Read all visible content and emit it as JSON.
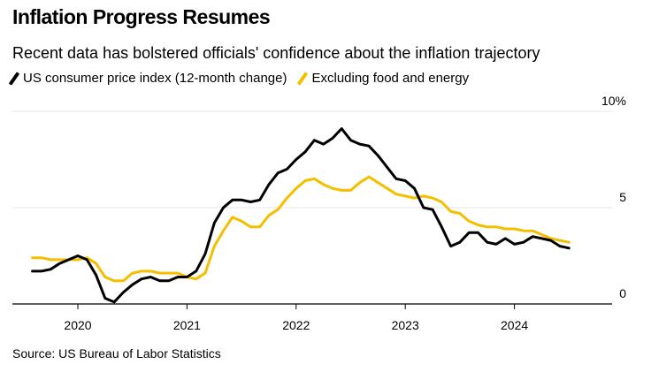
{
  "title": "Inflation Progress Resumes",
  "subtitle": "Recent data has bolstered officials' confidence about the inflation trajectory",
  "source": "Source: US Bureau of Labor Statistics",
  "colors": {
    "headline": "#000000",
    "core": "#f5bf00",
    "grid": "#e6e6e6",
    "axis": "#000000"
  },
  "chart_data": {
    "type": "line",
    "title": "Inflation Progress Resumes",
    "subtitle": "Recent data has bolstered officials' confidence about the inflation trajectory",
    "xlabel": "",
    "ylabel": "",
    "x_ticks": [
      2020,
      2021,
      2022,
      2023,
      2024
    ],
    "y_ticks": [
      {
        "value": 0,
        "label": "0"
      },
      {
        "value": 5,
        "label": "5"
      },
      {
        "value": 10,
        "label": "10%"
      }
    ],
    "ylim": [
      0,
      10
    ],
    "xlim": [
      "2019-07",
      "2024-12"
    ],
    "grid": true,
    "legend_position": "top-left",
    "x": [
      "2019-08",
      "2019-09",
      "2019-10",
      "2019-11",
      "2019-12",
      "2020-01",
      "2020-02",
      "2020-03",
      "2020-04",
      "2020-05",
      "2020-06",
      "2020-07",
      "2020-08",
      "2020-09",
      "2020-10",
      "2020-11",
      "2020-12",
      "2021-01",
      "2021-02",
      "2021-03",
      "2021-04",
      "2021-05",
      "2021-06",
      "2021-07",
      "2021-08",
      "2021-09",
      "2021-10",
      "2021-11",
      "2021-12",
      "2022-01",
      "2022-02",
      "2022-03",
      "2022-04",
      "2022-05",
      "2022-06",
      "2022-07",
      "2022-08",
      "2022-09",
      "2022-10",
      "2022-11",
      "2022-12",
      "2023-01",
      "2023-02",
      "2023-03",
      "2023-04",
      "2023-05",
      "2023-06",
      "2023-07",
      "2023-08",
      "2023-09",
      "2023-10",
      "2023-11",
      "2023-12",
      "2024-01",
      "2024-02",
      "2024-03",
      "2024-04",
      "2024-05",
      "2024-06",
      "2024-07"
    ],
    "series": [
      {
        "name": "US consumer price index (12-month change)",
        "color": "#000000",
        "values": [
          1.7,
          1.7,
          1.8,
          2.1,
          2.3,
          2.5,
          2.3,
          1.5,
          0.3,
          0.1,
          0.6,
          1.0,
          1.3,
          1.4,
          1.2,
          1.2,
          1.4,
          1.4,
          1.7,
          2.6,
          4.2,
          5.0,
          5.4,
          5.4,
          5.3,
          5.4,
          6.2,
          6.8,
          7.0,
          7.5,
          7.9,
          8.5,
          8.3,
          8.6,
          9.1,
          8.5,
          8.3,
          8.2,
          7.7,
          7.1,
          6.5,
          6.4,
          6.0,
          5.0,
          4.9,
          4.0,
          3.0,
          3.2,
          3.7,
          3.7,
          3.2,
          3.1,
          3.4,
          3.1,
          3.2,
          3.5,
          3.4,
          3.3,
          3.0,
          2.9
        ]
      },
      {
        "name": "Excluding food and energy",
        "color": "#f5bf00",
        "values": [
          2.4,
          2.4,
          2.3,
          2.3,
          2.3,
          2.3,
          2.4,
          2.1,
          1.4,
          1.2,
          1.2,
          1.6,
          1.7,
          1.7,
          1.6,
          1.6,
          1.6,
          1.4,
          1.3,
          1.6,
          3.0,
          3.8,
          4.5,
          4.3,
          4.0,
          4.0,
          4.6,
          4.9,
          5.5,
          6.0,
          6.4,
          6.5,
          6.2,
          6.0,
          5.9,
          5.9,
          6.3,
          6.6,
          6.3,
          6.0,
          5.7,
          5.6,
          5.5,
          5.6,
          5.5,
          5.3,
          4.8,
          4.7,
          4.3,
          4.1,
          4.0,
          4.0,
          3.9,
          3.9,
          3.8,
          3.8,
          3.6,
          3.4,
          3.3,
          3.2
        ]
      }
    ]
  }
}
